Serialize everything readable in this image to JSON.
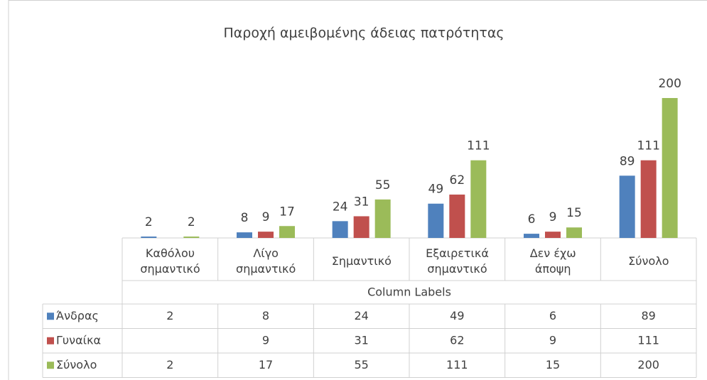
{
  "chart_data": {
    "type": "bar",
    "title": "Παροχή αμειβομένης άδειας πατρότητας",
    "categories": [
      "Καθόλου σημαντικό",
      "Λίγο σημαντικό",
      "Σημαντικό",
      "Εξαιρετικά σημαντικό",
      "Δεν έχω άποψη",
      "Σύνολο"
    ],
    "x_label": "Column Labels",
    "series": [
      {
        "name": "Άνδρας",
        "color": "#4f81bd",
        "values": [
          2,
          8,
          24,
          49,
          6,
          89
        ]
      },
      {
        "name": "Γυναίκα",
        "color": "#c0504d",
        "values": [
          null,
          9,
          31,
          62,
          9,
          111
        ]
      },
      {
        "name": "Σύνολο",
        "color": "#9bbb59",
        "values": [
          2,
          17,
          55,
          111,
          15,
          200
        ]
      }
    ],
    "ylim": [
      0,
      200
    ]
  }
}
